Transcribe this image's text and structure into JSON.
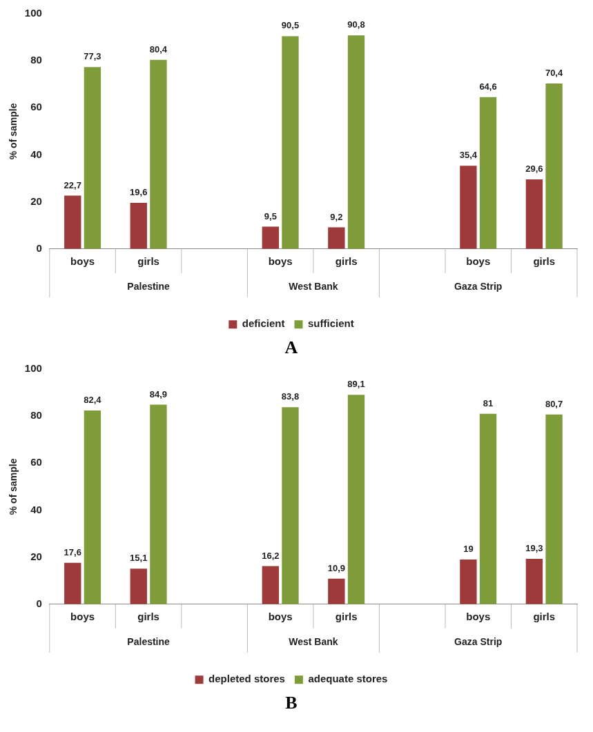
{
  "chart_data": [
    {
      "type": "bar",
      "title": "A",
      "ylabel": "% of sample",
      "categories": [
        "boys",
        "girls",
        null,
        "boys",
        "girls",
        null,
        "boys",
        "girls"
      ],
      "series": [
        {
          "name": "deficient",
          "color": "#9e3b3a",
          "values": [
            22.7,
            19.6,
            null,
            9.5,
            9.2,
            null,
            35.4,
            29.6
          ],
          "value_labels": [
            "22,7",
            "19,6",
            null,
            "9,5",
            "9,2",
            null,
            "35,4",
            "29,6"
          ]
        },
        {
          "name": "sufficient",
          "color": "#7f9c3a",
          "values": [
            77.3,
            80.4,
            null,
            90.5,
            90.8,
            null,
            64.6,
            70.4
          ],
          "value_labels": [
            "77,3",
            "80,4",
            null,
            "90,5",
            "90,8",
            null,
            "64,6",
            "70,4"
          ]
        }
      ],
      "annotations": [
        "Palestine",
        "West Bank",
        "Gaza Strip"
      ],
      "ylim": [
        0,
        100
      ],
      "yticks": [
        0,
        20,
        40,
        60,
        80,
        100
      ],
      "grid": false,
      "legend": "bottom"
    },
    {
      "type": "bar",
      "title": "B",
      "ylabel": "% of sample",
      "categories": [
        "boys",
        "girls",
        null,
        "boys",
        "girls",
        null,
        "boys",
        "girls"
      ],
      "series": [
        {
          "name": "depleted stores",
          "color": "#9e3b3a",
          "values": [
            17.6,
            15.1,
            null,
            16.2,
            10.9,
            null,
            19,
            19.3
          ],
          "value_labels": [
            "17,6",
            "15,1",
            null,
            "16,2",
            "10,9",
            null,
            "19",
            "19,3"
          ]
        },
        {
          "name": "adequate stores",
          "color": "#7f9c3a",
          "values": [
            82.4,
            84.9,
            null,
            83.8,
            89.1,
            null,
            81,
            80.7
          ],
          "value_labels": [
            "82,4",
            "84,9",
            null,
            "83,8",
            "89,1",
            null,
            "81",
            "80,7"
          ]
        }
      ],
      "annotations": [
        "Palestine",
        "West Bank",
        "Gaza Strip"
      ],
      "ylim": [
        0,
        100
      ],
      "yticks": [
        0,
        20,
        40,
        60,
        80,
        100
      ],
      "grid": false,
      "legend": "bottom"
    }
  ]
}
